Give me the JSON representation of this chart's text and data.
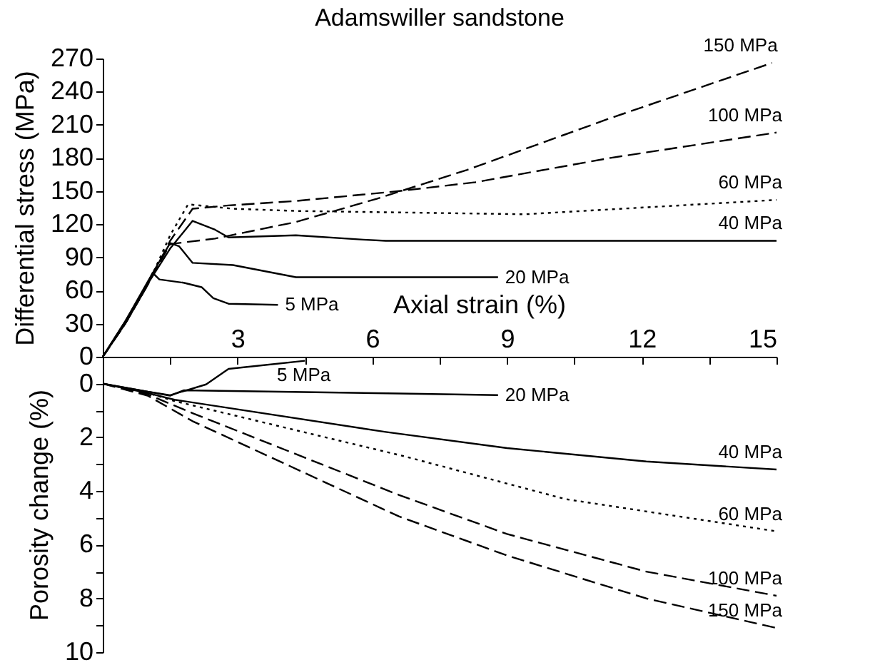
{
  "chart_data": [
    {
      "type": "line",
      "title": "Adamswiller sandstone",
      "xlabel": "Axial strain (%)",
      "ylabel": "Differential stress (MPa)",
      "xlim": [
        0,
        15
      ],
      "ylim": [
        0,
        270
      ],
      "xticks": [
        {
          "value": 0,
          "label": null
        },
        {
          "value": 1.5,
          "label": null
        },
        3,
        {
          "value": 4.5,
          "label": null
        },
        6,
        {
          "value": 7.5,
          "label": null
        },
        9,
        {
          "value": 10.5,
          "label": null
        },
        12,
        {
          "value": 13.5,
          "label": null
        },
        15
      ],
      "yticks": [
        0,
        30,
        60,
        90,
        120,
        150,
        180,
        210,
        240,
        270
      ],
      "grid": false,
      "marker": "none",
      "series": [
        {
          "name": "5 MPa",
          "color": "#000000",
          "line_style": "solid",
          "x": [
            0,
            0.5,
            0.9,
            1.11,
            1.26,
            1.8,
            2.2,
            2.46,
            2.8,
            3.9
          ],
          "values": [
            0,
            30,
            58,
            76,
            70,
            67,
            63,
            53,
            48,
            47
          ]
        },
        {
          "name": "20 MPa",
          "color": "#000000",
          "line_style": "solid",
          "x": [
            0,
            0.5,
            1,
            1.5,
            1.7,
            2,
            2.9,
            4.3,
            6.6,
            8.8
          ],
          "values": [
            0,
            32,
            68,
            103,
            100,
            85,
            83,
            72,
            72,
            72
          ]
        },
        {
          "name": "40 MPa",
          "color": "#000000",
          "line_style": "solid",
          "x": [
            0,
            0.5,
            1,
            1.5,
            2,
            2.5,
            2.8,
            4.3,
            5.8,
            6.3,
            15
          ],
          "values": [
            0,
            32,
            66,
            98,
            123,
            115,
            108,
            110,
            106,
            105,
            105
          ]
        },
        {
          "name": "60 MPa",
          "color": "#000000",
          "line_style": "dotted",
          "x": [
            0,
            0.5,
            1,
            1.5,
            1.9,
            2.9,
            4.3,
            9.4,
            15
          ],
          "values": [
            0,
            30,
            65,
            110,
            138,
            134,
            132,
            129,
            142
          ]
        },
        {
          "name": "100 MPa",
          "color": "#000000",
          "line_style": "dashed",
          "x": [
            0,
            0.5,
            1,
            1.5,
            2,
            2.8,
            4.3,
            6.6,
            8.3,
            11.3,
            15
          ],
          "values": [
            0,
            30,
            65,
            105,
            134,
            137,
            141,
            150,
            158,
            180,
            203
          ]
        },
        {
          "name": "150 MPa",
          "color": "#000000",
          "line_style": "dashed",
          "x": [
            0,
            0.5,
            1,
            1.5,
            2.5,
            4.3,
            6.1,
            8.1,
            11.3,
            14.9
          ],
          "values": [
            0,
            30,
            66,
            102,
            107,
            122,
            143,
            169,
            216,
            266
          ]
        }
      ]
    },
    {
      "type": "line",
      "ylabel": "Porosity change (%)",
      "xlim": [
        0,
        15
      ],
      "ylim": [
        10,
        -1
      ],
      "yticks": [
        0,
        {
          "value": 1,
          "label": null
        },
        2,
        {
          "value": 3,
          "label": null
        },
        4,
        {
          "value": 5,
          "label": null
        },
        6,
        {
          "value": 7,
          "label": null
        },
        8,
        {
          "value": 9,
          "label": null
        },
        10
      ],
      "tick_labels": "y",
      "grid": false,
      "marker": "none",
      "series": [
        {
          "name": "5 MPa",
          "color": "#000000",
          "line_style": "solid",
          "x": [
            0,
            1,
            1.5,
            2.3,
            2.8,
            4.5
          ],
          "values": [
            0,
            0.3,
            0.43,
            0.03,
            -0.55,
            -0.85
          ]
        },
        {
          "name": "20 MPa",
          "color": "#000000",
          "line_style": "solid",
          "x": [
            0,
            1,
            1.5,
            1.8,
            6.6,
            8.8
          ],
          "values": [
            0,
            0.3,
            0.45,
            0.25,
            0.37,
            0.43
          ]
        },
        {
          "name": "40 MPa",
          "color": "#000000",
          "line_style": "solid",
          "x": [
            0,
            1,
            1.6,
            6.3,
            9,
            12.1,
            15
          ],
          "values": [
            0,
            0.35,
            0.6,
            1.8,
            2.4,
            2.9,
            3.2
          ]
        },
        {
          "name": "60 MPa",
          "color": "#000000",
          "line_style": "dotted",
          "x": [
            0,
            1,
            1.6,
            6.7,
            10.3,
            15
          ],
          "values": [
            0,
            0.35,
            0.65,
            2.7,
            4.3,
            5.5
          ]
        },
        {
          "name": "100 MPa",
          "color": "#000000",
          "line_style": "dashed",
          "x": [
            0,
            1,
            2,
            6.6,
            9,
            12.1,
            15
          ],
          "values": [
            0,
            0.4,
            1.1,
            4.15,
            5.6,
            7.0,
            7.9
          ]
        },
        {
          "name": "150 MPa",
          "color": "#000000",
          "line_style": "dashed",
          "x": [
            0,
            1,
            2,
            6.6,
            9,
            12.1,
            15
          ],
          "values": [
            0,
            0.45,
            1.4,
            4.95,
            6.4,
            8.0,
            9.1
          ]
        }
      ]
    }
  ]
}
